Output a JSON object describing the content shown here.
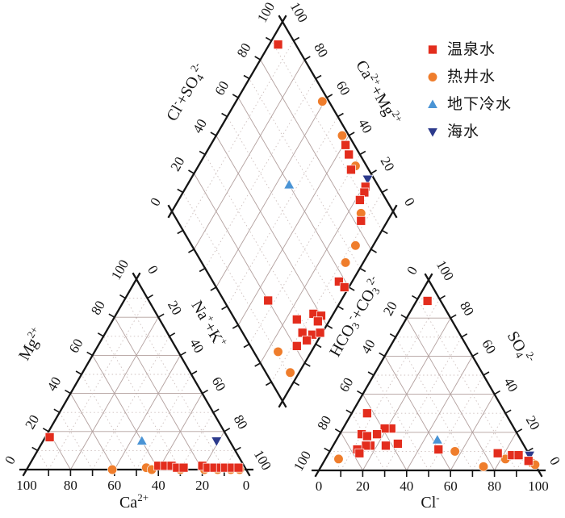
{
  "figure": {
    "background": "#ffffff"
  },
  "legend": {
    "items": [
      {
        "label": "温泉水",
        "series": "hot-spring-water",
        "marker": "square",
        "color": "#e32d1d"
      },
      {
        "label": "热井水",
        "series": "hot-well-water",
        "marker": "circle",
        "color": "#ef7d2c"
      },
      {
        "label": "地下冷水",
        "series": "cold-groundwater",
        "marker": "triangle-up",
        "color": "#4a94d5"
      },
      {
        "label": "海水",
        "series": "seawater",
        "marker": "triangle-down",
        "color": "#2c3a8c"
      }
    ]
  },
  "chart_data": {
    "type": "piper-trilinear",
    "grid": {
      "major_step": 20,
      "minor_step": 10,
      "major_color": "#b2a09e",
      "minor_color": "#cdbfbd",
      "axis_color": "#151515"
    },
    "tick_values": [
      0,
      20,
      40,
      60,
      80,
      100
    ],
    "panels": {
      "diamond": {
        "point_format": "[ca_mg, cl_so4]",
        "axes": [
          {
            "id": "cl_so4",
            "side": "upper-left",
            "label_text": "Cl⁻+SO₄²⁻",
            "label_parts": [
              {
                "t": "Cl"
              },
              {
                "t": "-",
                "sup": true
              },
              {
                "t": "+SO"
              },
              {
                "t": "4",
                "sub": true
              },
              {
                "t": "2-",
                "sup": true
              }
            ]
          },
          {
            "id": "ca_mg",
            "side": "upper-right",
            "label_text": "Ca²⁺+Mg²⁺",
            "label_parts": [
              {
                "t": "Ca"
              },
              {
                "t": "2+",
                "sup": true
              },
              {
                "t": "+Mg"
              },
              {
                "t": "2+",
                "sup": true
              }
            ]
          }
        ]
      },
      "cation": {
        "point_format": "[ca, mg]",
        "axes": [
          {
            "id": "ca",
            "side": "bottom",
            "label_text": "Ca²⁺",
            "label_parts": [
              {
                "t": "Ca"
              },
              {
                "t": "2+",
                "sup": true
              }
            ]
          },
          {
            "id": "mg",
            "side": "left",
            "label_text": "Mg²⁺",
            "label_parts": [
              {
                "t": "Mg"
              },
              {
                "t": "2+",
                "sup": true
              }
            ]
          },
          {
            "id": "na_k",
            "side": "right",
            "label_text": "Na⁺+K⁺",
            "label_parts": [
              {
                "t": "Na"
              },
              {
                "t": "+",
                "sup": true
              },
              {
                "t": "+K"
              },
              {
                "t": "+",
                "sup": true
              }
            ]
          }
        ]
      },
      "anion": {
        "point_format": "[cl, so4]",
        "axes": [
          {
            "id": "cl",
            "side": "bottom",
            "label_text": "Cl⁻",
            "label_parts": [
              {
                "t": "Cl"
              },
              {
                "t": "-",
                "sup": true
              }
            ]
          },
          {
            "id": "hco3_co3",
            "side": "left",
            "label_text": "HCO₃⁻+CO₃²⁻",
            "label_parts": [
              {
                "t": "HCO"
              },
              {
                "t": "3",
                "sub": true
              },
              {
                "t": "-",
                "sup": true
              },
              {
                "t": "+CO"
              },
              {
                "t": "3",
                "sub": true
              },
              {
                "t": "2-",
                "sup": true
              }
            ]
          },
          {
            "id": "so4",
            "side": "right",
            "label_text": "SO₄²⁻",
            "label_parts": [
              {
                "t": "SO"
              },
              {
                "t": "4",
                "sub": true
              },
              {
                "t": "2-",
                "sup": true
              }
            ]
          }
        ]
      }
    },
    "series": [
      {
        "name": "温泉水",
        "marker": "square",
        "color": "#e32d1d",
        "diamond": [
          [
            96,
            92
          ],
          [
            39,
            96
          ],
          [
            35,
            95
          ],
          [
            30,
            92
          ],
          [
            19,
            94
          ],
          [
            18,
            92
          ],
          [
            18,
            88
          ],
          [
            12,
            83
          ],
          [
            6,
            57
          ],
          [
            2,
            58
          ],
          [
            33,
            20
          ],
          [
            15,
            28
          ],
          [
            9,
            37
          ],
          [
            5,
            40
          ],
          [
            5,
            37
          ],
          [
            9,
            27
          ],
          [
            4,
            31
          ],
          [
            1,
            35
          ],
          [
            5,
            27
          ],
          [
            8,
            21
          ]
        ],
        "cation": [
          [
            81,
            17
          ],
          [
            39,
            2
          ],
          [
            36,
            2
          ],
          [
            33,
            2
          ],
          [
            31,
            1
          ],
          [
            28,
            1
          ],
          [
            19,
            2
          ],
          [
            17,
            1
          ],
          [
            14,
            1
          ],
          [
            11,
            1
          ],
          [
            9,
            1
          ],
          [
            6,
            1
          ],
          [
            3,
            1
          ]
        ],
        "anion": [
          [
            5,
            89
          ],
          [
            7,
            30
          ],
          [
            22,
            22
          ],
          [
            19,
            22
          ],
          [
            17,
            19
          ],
          [
            10,
            19
          ],
          [
            13,
            18
          ],
          [
            17,
            13
          ],
          [
            15,
            13
          ],
          [
            24,
            13
          ],
          [
            29,
            14
          ],
          [
            12,
            11
          ],
          [
            14,
            9
          ],
          [
            49,
            11
          ],
          [
            77,
            9
          ],
          [
            84,
            8
          ],
          [
            87,
            8
          ],
          [
            93,
            5
          ]
        ]
      },
      {
        "name": "热井水",
        "marker": "circle",
        "color": "#ef7d2c",
        "diamond": [
          [
            61,
            97
          ],
          [
            43,
            97
          ],
          [
            29,
            95
          ],
          [
            14,
            85
          ],
          [
            8,
            74
          ],
          [
            8,
            65
          ],
          [
            15,
            11
          ],
          [
            4,
            11
          ]
        ],
        "cation": [
          [
            61,
            0
          ],
          [
            45,
            1
          ],
          [
            43,
            0
          ],
          [
            30,
            0
          ],
          [
            19,
            0
          ],
          [
            13,
            0
          ],
          [
            7,
            0
          ],
          [
            3,
            0
          ]
        ],
        "anion": [
          [
            6,
            6
          ],
          [
            57,
            10
          ],
          [
            74,
            2
          ],
          [
            82,
            6
          ],
          [
            95,
            4
          ],
          [
            97,
            3
          ]
        ]
      },
      {
        "name": "地下冷水",
        "marker": "triangle-up",
        "color": "#4a94d5",
        "diamond": [
          [
            54,
            60
          ]
        ],
        "cation": [
          [
            40,
            15
          ]
        ],
        "anion": [
          [
            46,
            16
          ]
        ]
      },
      {
        "name": "海水",
        "marker": "triangle-down",
        "color": "#2c3a8c",
        "diamond": [
          [
            20,
            97
          ]
        ],
        "cation": [
          [
            6,
            15
          ]
        ],
        "anion": [
          [
            92,
            8
          ]
        ]
      }
    ]
  }
}
